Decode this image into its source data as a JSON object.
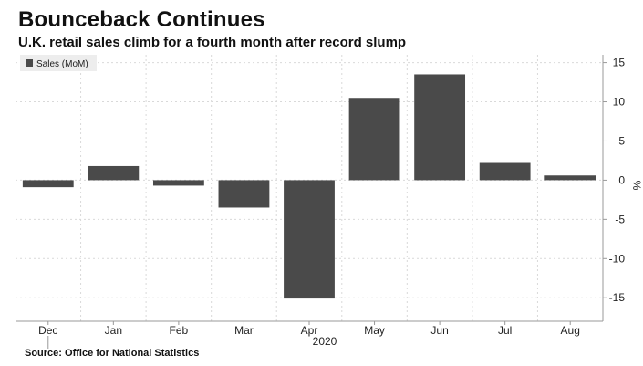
{
  "header": {
    "title": "Bounceback Continues",
    "subtitle": "U.K. retail sales climb for a fourth month after record slump"
  },
  "footer": {
    "source": "Source: Office for National Statistics"
  },
  "colors": {
    "bar": "#4a4a4a",
    "grid": "#d9d9d9",
    "axis": "#999999",
    "legend_bg": "#ededed"
  },
  "chart_data": {
    "type": "bar",
    "categories": [
      "Dec",
      "Jan",
      "Feb",
      "Mar",
      "Apr",
      "May",
      "Jun",
      "Jul",
      "Aug"
    ],
    "year_label": "2020",
    "series": [
      {
        "name": "Sales (MoM)",
        "values": [
          -0.9,
          1.8,
          -0.7,
          -3.5,
          -15.1,
          10.5,
          13.5,
          2.2,
          0.6
        ]
      }
    ],
    "ylabel": "%",
    "ylim": [
      -18,
      16
    ],
    "yticks": [
      15,
      10,
      5,
      0,
      -5,
      -10,
      -15
    ],
    "grid": true,
    "legend_position": "top-left",
    "y_axis_position": "right"
  }
}
